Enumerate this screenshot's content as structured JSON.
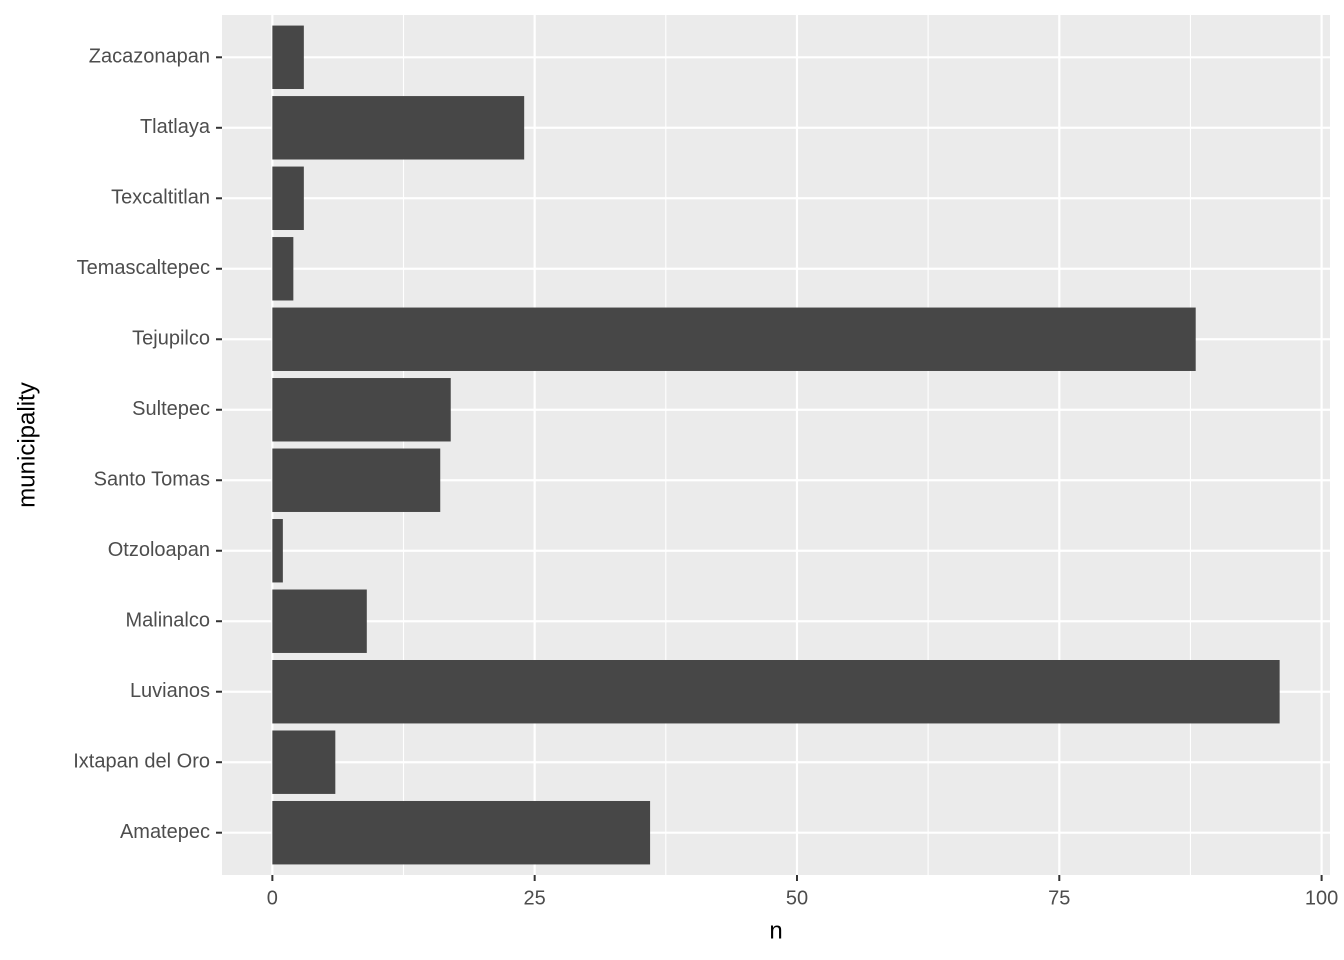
{
  "chart_data": {
    "type": "bar",
    "orientation": "horizontal",
    "x_label": "n",
    "y_label": "municipality",
    "categories": [
      "Amatepec",
      "Ixtapan del Oro",
      "Luvianos",
      "Malinalco",
      "Otzoloapan",
      "Santo Tomas",
      "Sultepec",
      "Tejupilco",
      "Temascaltepec",
      "Texcaltitlan",
      "Tlatlaya",
      "Zacazonapan"
    ],
    "values": [
      36,
      6,
      96,
      9,
      1,
      16,
      17,
      88,
      2,
      3,
      24,
      3
    ],
    "color": "#474747",
    "xlim": [
      -4.8,
      100.8
    ],
    "xticks": [
      0,
      25,
      50,
      75,
      100
    ],
    "grid": true
  }
}
